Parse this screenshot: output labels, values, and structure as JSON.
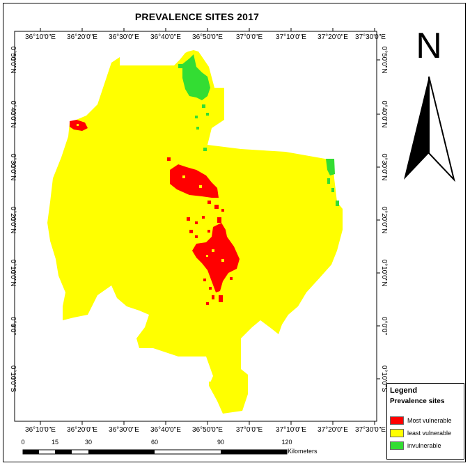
{
  "map": {
    "title": "PREVALENCE SITES 2017",
    "longitude_labels": [
      "36°10'0\"E",
      "36°20'0\"E",
      "36°30'0\"E",
      "36°40'0\"E",
      "36°50'0\"E",
      "37°0'0\"E",
      "37°10'0\"E",
      "37°20'0\"E",
      "37°30'0\"E"
    ],
    "latitude_labels": [
      "0°50'0\"N",
      "0°40'0\"N",
      "0°30'0\"N",
      "0°20'0\"N",
      "0°10'0\"N",
      "0°0'0\"",
      "0°10'0\"S"
    ],
    "colors": {
      "most_vulnerable": "#ff0000",
      "least_vulnerable": "#ffff00",
      "invulnerable": "#33dd33"
    }
  },
  "north_arrow": {
    "letter": "N"
  },
  "legend": {
    "title": "Legend",
    "subtitle": "Prevalence sites",
    "items": [
      {
        "label": "Most vulnerable",
        "color": "#ff0000"
      },
      {
        "label": "least vulnerable",
        "color": "#ffff00"
      },
      {
        "label": "invulnerable",
        "color": "#33dd33"
      }
    ]
  },
  "scale_bar": {
    "labels": [
      "0",
      "15",
      "30",
      "60",
      "90",
      "120"
    ],
    "unit": "Kilometers"
  }
}
